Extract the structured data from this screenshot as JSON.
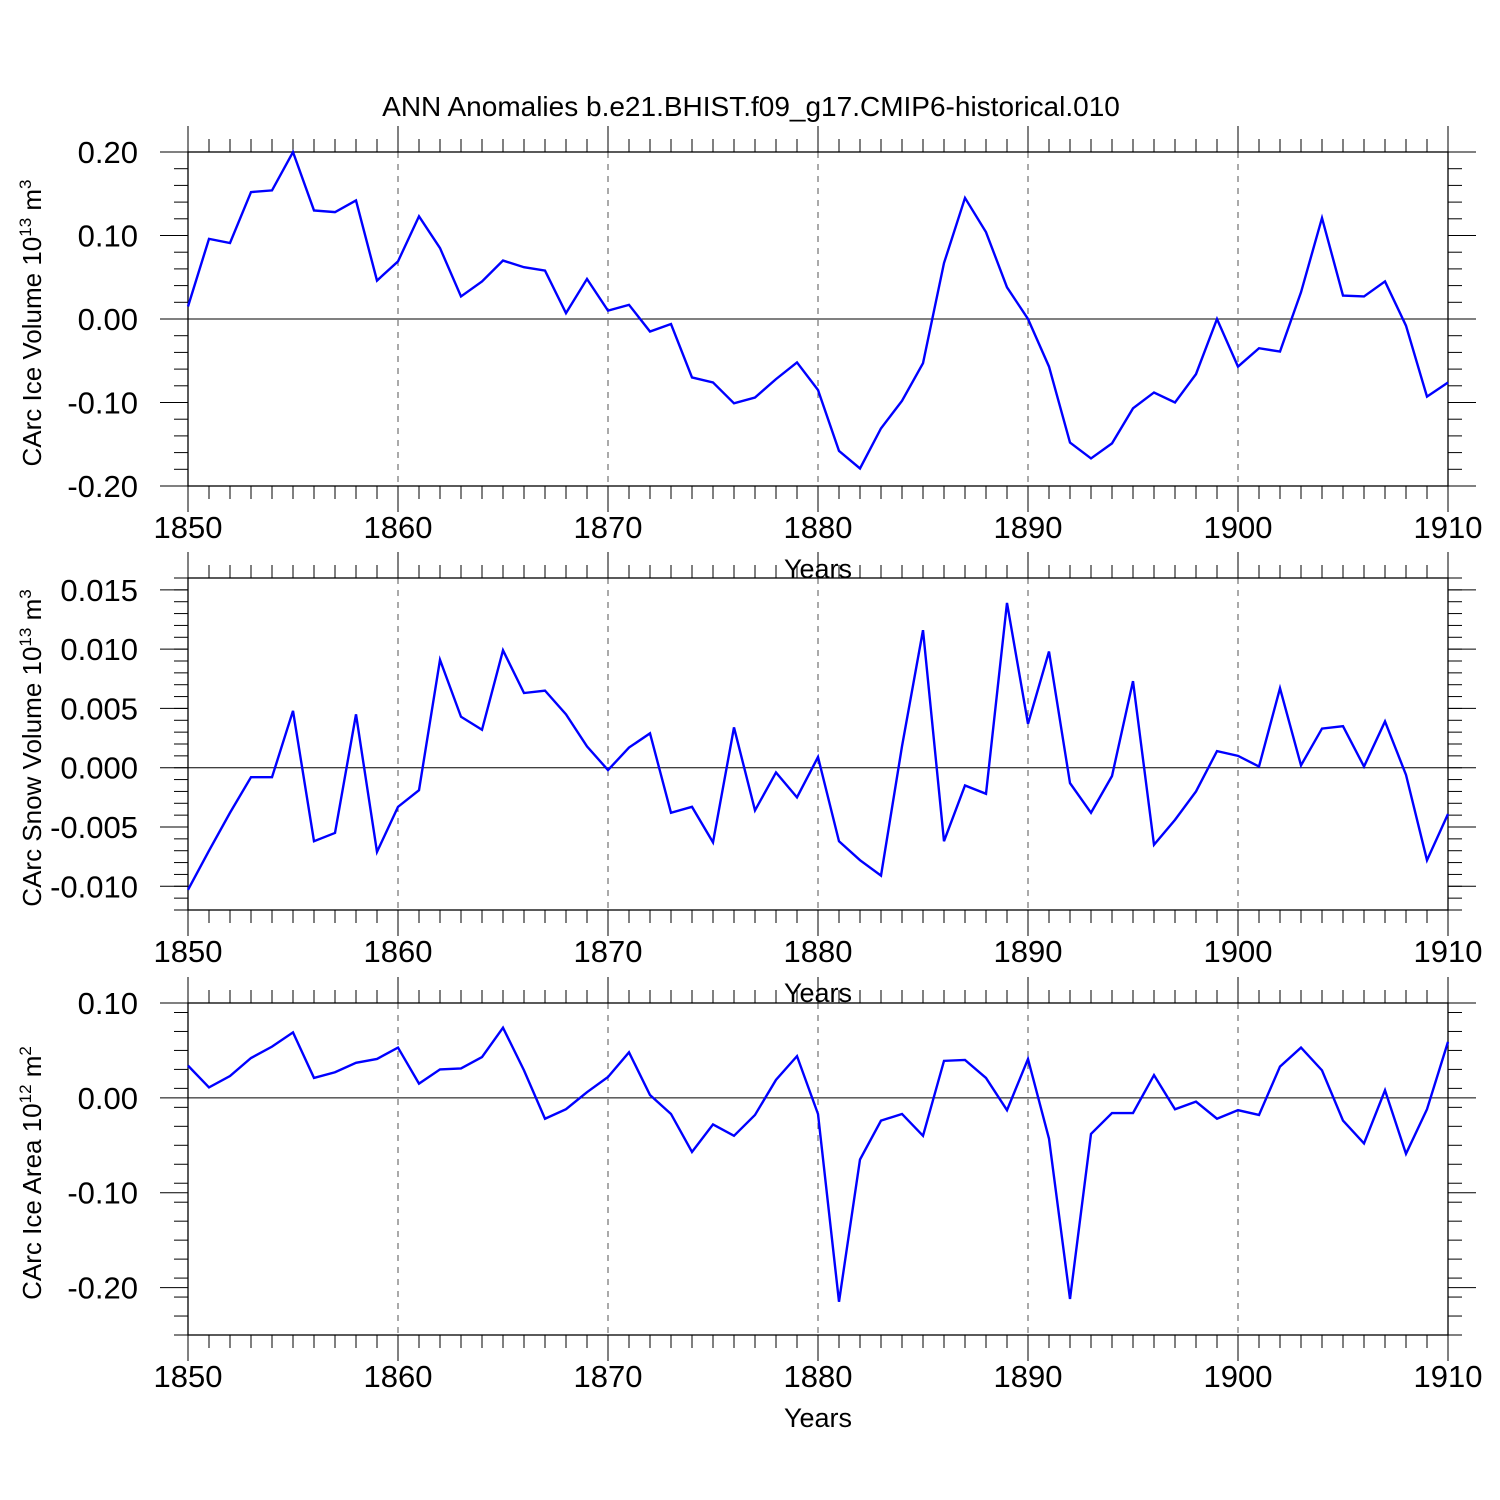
{
  "title": "ANN Anomalies b.e21.BHIST.f09_g17.CMIP6-historical.010",
  "chart_data": [
    {
      "type": "line",
      "title": "ANN Anomalies b.e21.BHIST.f09_g17.CMIP6-historical.010",
      "xlabel": "Years",
      "ylabel": "CArc Ice Volume 10",
      "ylabel_exp": "13",
      "ylabel_unit": " m",
      "ylabel_unit_exp": "3",
      "line_color": "#0000ff",
      "xlim": [
        1850,
        1910
      ],
      "ylim": [
        -0.2,
        0.2
      ],
      "xticks": [
        1850,
        1860,
        1870,
        1880,
        1890,
        1900,
        1910
      ],
      "xtick_labels": [
        "1850",
        "1860",
        "1870",
        "1880",
        "1890",
        "1900",
        "1910"
      ],
      "yticks": [
        0.2,
        0.1,
        0.0,
        -0.1,
        -0.2
      ],
      "ytick_labels": [
        "0.20",
        "0.10",
        "0.00",
        "-0.10",
        "-0.20"
      ],
      "reference_line": 0,
      "x_start": 1850,
      "values": [
        0.015,
        0.096,
        0.091,
        0.152,
        0.154,
        0.2,
        0.13,
        0.128,
        0.142,
        0.046,
        0.069,
        0.123,
        0.085,
        0.027,
        0.045,
        0.07,
        0.062,
        0.058,
        0.007,
        0.048,
        0.01,
        0.017,
        -0.015,
        -0.006,
        -0.07,
        -0.076,
        -0.101,
        -0.094,
        -0.072,
        -0.052,
        -0.085,
        -0.158,
        -0.179,
        -0.131,
        -0.098,
        -0.053,
        0.067,
        0.145,
        0.104,
        0.038,
        0.0,
        -0.057,
        -0.148,
        -0.167,
        -0.149,
        -0.107,
        -0.088,
        -0.1,
        -0.066,
        0.0,
        -0.057,
        -0.035,
        -0.039,
        0.032,
        0.121,
        0.028,
        0.027,
        0.045,
        -0.008,
        -0.093,
        -0.076
      ]
    },
    {
      "type": "line",
      "xlabel": "Years",
      "ylabel": "CArc Snow Volume 10",
      "ylabel_exp": "13",
      "ylabel_unit": " m",
      "ylabel_unit_exp": "3",
      "line_color": "#0000ff",
      "xlim": [
        1850,
        1910
      ],
      "ylim": [
        -0.012,
        0.016
      ],
      "xticks": [
        1850,
        1860,
        1870,
        1880,
        1890,
        1900,
        1910
      ],
      "xtick_labels": [
        "1850",
        "1860",
        "1870",
        "1880",
        "1890",
        "1900",
        "1910"
      ],
      "yticks": [
        0.015,
        0.01,
        0.005,
        0.0,
        -0.005,
        -0.01
      ],
      "ytick_labels": [
        "0.015",
        "0.010",
        "0.005",
        "0.000",
        "-0.005",
        "-0.010"
      ],
      "reference_line": 0,
      "x_start": 1850,
      "values": [
        -0.0103,
        -0.007,
        -0.0038,
        -0.0008,
        -0.0008,
        0.0048,
        -0.0062,
        -0.0055,
        0.0045,
        -0.0071,
        -0.0033,
        -0.0019,
        0.0091,
        0.0043,
        0.0032,
        0.0099,
        0.0063,
        0.0065,
        0.0045,
        0.0018,
        -0.0002,
        0.0017,
        0.0029,
        -0.0038,
        -0.0033,
        -0.0063,
        0.0034,
        -0.0036,
        -0.0004,
        -0.0025,
        0.0009,
        -0.0062,
        -0.0078,
        -0.0091,
        0.0018,
        0.0116,
        -0.0062,
        -0.0015,
        -0.0022,
        0.0139,
        0.0037,
        0.0098,
        -0.0013,
        -0.0038,
        -0.0007,
        0.0073,
        -0.0065,
        -0.0044,
        -0.002,
        0.0014,
        0.001,
        0.0001,
        0.0067,
        0.0002,
        0.0033,
        0.0035,
        0.0001,
        0.0039,
        -0.0006,
        -0.0078,
        -0.0039
      ]
    },
    {
      "type": "line",
      "xlabel": "Years",
      "ylabel": "CArc Ice Area 10",
      "ylabel_exp": "12",
      "ylabel_unit": " m",
      "ylabel_unit_exp": "2",
      "line_color": "#0000ff",
      "xlim": [
        1850,
        1910
      ],
      "ylim": [
        -0.25,
        0.1
      ],
      "xticks": [
        1850,
        1860,
        1870,
        1880,
        1890,
        1900,
        1910
      ],
      "xtick_labels": [
        "1850",
        "1860",
        "1870",
        "1880",
        "1890",
        "1900",
        "1910"
      ],
      "yticks": [
        0.1,
        0.0,
        -0.1,
        -0.2
      ],
      "ytick_labels": [
        "0.10",
        "0.00",
        "-0.10",
        "-0.20"
      ],
      "reference_line": 0,
      "x_start": 1850,
      "values": [
        0.034,
        0.011,
        0.023,
        0.042,
        0.054,
        0.069,
        0.021,
        0.027,
        0.037,
        0.041,
        0.053,
        0.015,
        0.03,
        0.031,
        0.043,
        0.074,
        0.029,
        -0.022,
        -0.012,
        0.006,
        0.022,
        0.048,
        0.003,
        -0.017,
        -0.057,
        -0.028,
        -0.04,
        -0.018,
        0.019,
        0.044,
        -0.017,
        -0.215,
        -0.065,
        -0.024,
        -0.017,
        -0.04,
        0.039,
        0.04,
        0.021,
        -0.013,
        0.041,
        -0.043,
        -0.212,
        -0.038,
        -0.016,
        -0.016,
        0.024,
        -0.012,
        -0.004,
        -0.022,
        -0.013,
        -0.018,
        0.033,
        0.053,
        0.029,
        -0.024,
        -0.048,
        0.008,
        -0.059,
        -0.012,
        0.059
      ]
    }
  ]
}
